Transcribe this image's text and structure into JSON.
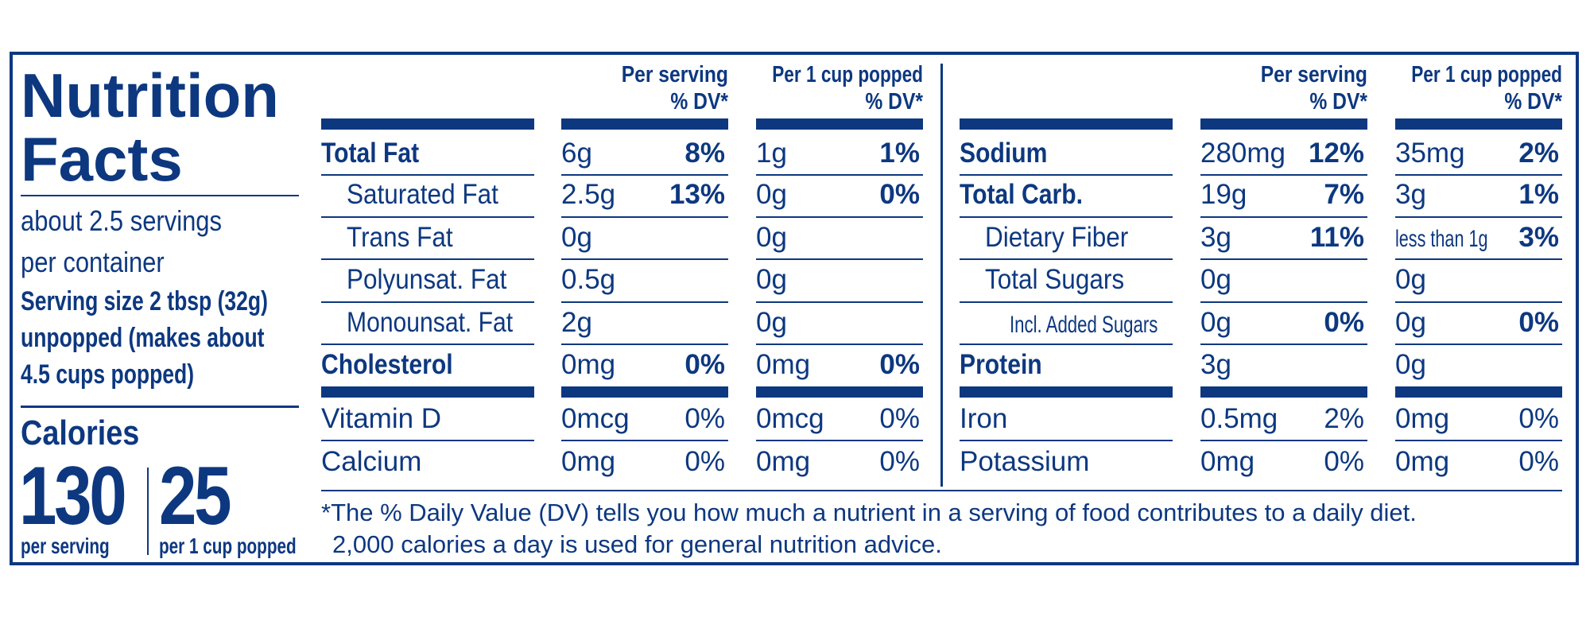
{
  "title_line1": "Nutrition",
  "title_line2": "Facts",
  "servings_line1": "about 2.5 servings",
  "servings_line2": "per container",
  "serving_size_line1": "Serving size 2 tbsp (32g)",
  "serving_size_line2": "unpopped (makes about",
  "serving_size_line3": "4.5 cups popped)",
  "calories_label": "Calories",
  "calories_per_serving": "130",
  "calories_per_cup": "25",
  "calories_per_serving_label": "per serving",
  "calories_per_cup_label": "per 1 cup popped",
  "headers": {
    "per_serving_line1": "Per serving",
    "per_serving_line2": "% DV*",
    "per_cup_line1": "Per 1 cup popped",
    "per_cup_line2": "% DV*"
  },
  "left_rows": [
    {
      "name": "Total Fat",
      "s_amt": "6g",
      "s_dv": "8%",
      "c_amt": "1g",
      "c_dv": "1%"
    },
    {
      "name": "Saturated Fat",
      "s_amt": "2.5g",
      "s_dv": "13%",
      "c_amt": "0g",
      "c_dv": "0%"
    },
    {
      "name": "Trans Fat",
      "s_amt": "0g",
      "s_dv": "",
      "c_amt": "0g",
      "c_dv": ""
    },
    {
      "name": "Polyunsat. Fat",
      "s_amt": "0.5g",
      "s_dv": "",
      "c_amt": "0g",
      "c_dv": ""
    },
    {
      "name": "Monounsat. Fat",
      "s_amt": "2g",
      "s_dv": "",
      "c_amt": "0g",
      "c_dv": ""
    },
    {
      "name": "Cholesterol",
      "s_amt": "0mg",
      "s_dv": "0%",
      "c_amt": "0mg",
      "c_dv": "0%"
    },
    {
      "name": "Vitamin D",
      "s_amt": "0mcg",
      "s_dv": "0%",
      "c_amt": "0mcg",
      "c_dv": "0%"
    },
    {
      "name": "Calcium",
      "s_amt": "0mg",
      "s_dv": "0%",
      "c_amt": "0mg",
      "c_dv": "0%"
    }
  ],
  "right_rows": [
    {
      "name": "Sodium",
      "s_amt": "280mg",
      "s_dv": "12%",
      "c_amt": "35mg",
      "c_dv": "2%"
    },
    {
      "name": "Total Carb.",
      "s_amt": "19g",
      "s_dv": "7%",
      "c_amt": "3g",
      "c_dv": "1%"
    },
    {
      "name": "Dietary Fiber",
      "s_amt": "3g",
      "s_dv": "11%",
      "c_amt": "less than 1g",
      "c_dv": "3%"
    },
    {
      "name": "Total Sugars",
      "s_amt": "0g",
      "s_dv": "",
      "c_amt": "0g",
      "c_dv": ""
    },
    {
      "name": "Incl. Added Sugars",
      "s_amt": "0g",
      "s_dv": "0%",
      "c_amt": "0g",
      "c_dv": "0%"
    },
    {
      "name": "Protein",
      "s_amt": "3g",
      "s_dv": "",
      "c_amt": "0g",
      "c_dv": ""
    },
    {
      "name": "Iron",
      "s_amt": "0.5mg",
      "s_dv": "2%",
      "c_amt": "0mg",
      "c_dv": "0%"
    },
    {
      "name": "Potassium",
      "s_amt": "0mg",
      "s_dv": "0%",
      "c_amt": "0mg",
      "c_dv": "0%"
    }
  ],
  "footnote_line1": "*The % Daily Value (DV) tells you how much a nutrient in a serving of food contributes to a daily diet.",
  "footnote_line2": "2,000 calories a day is used for general nutrition advice.",
  "colors": {
    "ink": "#0d3880",
    "background": "#ffffff"
  }
}
